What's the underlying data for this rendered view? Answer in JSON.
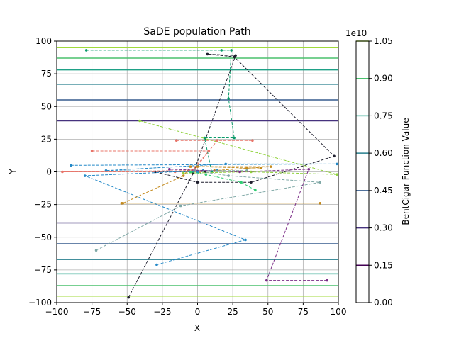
{
  "chart_data": {
    "type": "line",
    "title": "SaDE population Path",
    "xlabel": "X",
    "ylabel": "Y",
    "xlim": [
      -100,
      100
    ],
    "ylim": [
      -100,
      100
    ],
    "grid": true,
    "x_ticks": [
      "−100",
      "−75",
      "−50",
      "−25",
      "0",
      "25",
      "50",
      "75",
      "100"
    ],
    "x_tick_values": [
      -100,
      -75,
      -50,
      -25,
      0,
      25,
      50,
      75,
      100
    ],
    "y_ticks": [
      "−100",
      "−75",
      "−50",
      "−25",
      "0",
      "25",
      "50",
      "75",
      "100"
    ],
    "y_tick_values": [
      -100,
      -75,
      -50,
      -25,
      0,
      25,
      50,
      75,
      100
    ],
    "contour_levels": [
      {
        "y": 95,
        "color": "#a0da39"
      },
      {
        "y": 87,
        "color": "#4ac16d"
      },
      {
        "y": 78,
        "color": "#1fa187"
      },
      {
        "y": 67,
        "color": "#277f8e"
      },
      {
        "y": 55,
        "color": "#365c8d"
      },
      {
        "y": 39,
        "color": "#46327e"
      },
      {
        "y": -39,
        "color": "#46327e"
      },
      {
        "y": -55,
        "color": "#365c8d"
      },
      {
        "y": -67,
        "color": "#277f8e"
      },
      {
        "y": -78,
        "color": "#1fa187"
      },
      {
        "y": -87,
        "color": "#4ac16d"
      },
      {
        "y": -95,
        "color": "#a0da39"
      }
    ],
    "colorbar": {
      "label": "BentCigar Function Value",
      "multiplier": "1e10",
      "ticks": [
        "0.00",
        "0.15",
        "0.30",
        "0.45",
        "0.60",
        "0.75",
        "0.90",
        "1.05"
      ],
      "tick_values": [
        0.0,
        0.15,
        0.3,
        0.45,
        0.6,
        0.75,
        0.9,
        1.05
      ],
      "levels": [
        {
          "from": 0.0,
          "to": 0.15,
          "color": "#440154"
        },
        {
          "from": 0.15,
          "to": 0.3,
          "color": "#46327e"
        },
        {
          "from": 0.3,
          "to": 0.45,
          "color": "#365c8d"
        },
        {
          "from": 0.45,
          "to": 0.6,
          "color": "#277f8e"
        },
        {
          "from": 0.6,
          "to": 0.75,
          "color": "#1fa187"
        },
        {
          "from": 0.75,
          "to": 0.9,
          "color": "#4ac16d"
        },
        {
          "from": 0.9,
          "to": 1.05,
          "color": "#a0da39"
        }
      ]
    },
    "series": [
      {
        "color": "#1f1f2e",
        "points": [
          [
            -49,
            -96
          ],
          [
            -3,
            -1
          ],
          [
            27,
            89
          ],
          [
            7,
            90
          ],
          [
            26,
            88
          ],
          [
            97,
            12
          ],
          [
            38,
            -8
          ],
          [
            0,
            -8
          ],
          [
            -30,
            0
          ],
          [
            5,
            0
          ]
        ]
      },
      {
        "color": "#0a9b6a",
        "points": [
          [
            -79,
            93
          ],
          [
            17,
            93
          ],
          [
            24,
            93
          ],
          [
            22,
            56
          ],
          [
            26,
            26
          ],
          [
            5,
            26
          ],
          [
            10,
            0
          ]
        ]
      },
      {
        "color": "#e8756a",
        "points": [
          [
            -75,
            16
          ],
          [
            8,
            16
          ],
          [
            -4,
            1
          ],
          [
            -96,
            0
          ],
          [
            -16,
            0
          ],
          [
            2,
            0
          ]
        ]
      },
      {
        "color": "#e8756a",
        "points": [
          [
            -15,
            24
          ],
          [
            39,
            24
          ],
          [
            14,
            24
          ],
          [
            -2,
            2
          ]
        ]
      },
      {
        "color": "#8fd23a",
        "points": [
          [
            -41,
            39
          ],
          [
            99,
            -2
          ],
          [
            38,
            0
          ],
          [
            -10,
            -1
          ]
        ]
      },
      {
        "color": "#2389c8",
        "points": [
          [
            -90,
            5
          ],
          [
            99,
            6
          ],
          [
            20,
            6
          ],
          [
            -65,
            1
          ],
          [
            0,
            0
          ]
        ]
      },
      {
        "color": "#2389c8",
        "points": [
          [
            -29,
            -71
          ],
          [
            34,
            -52
          ],
          [
            -80,
            -3
          ],
          [
            4,
            1
          ],
          [
            14,
            1
          ]
        ]
      },
      {
        "color": "#c48a1c",
        "points": [
          [
            -54,
            -24
          ],
          [
            87,
            -24
          ],
          [
            -53,
            -24
          ],
          [
            -10,
            -3
          ],
          [
            -5,
            4
          ],
          [
            52,
            4
          ],
          [
            12,
            1
          ]
        ]
      },
      {
        "color": "#7fa8a6",
        "points": [
          [
            -72,
            -60
          ],
          [
            -12,
            -26
          ],
          [
            87,
            -8
          ],
          [
            22,
            -3
          ],
          [
            -2,
            1
          ],
          [
            35,
            1
          ]
        ]
      },
      {
        "color": "#7b2d87",
        "points": [
          [
            92,
            -83
          ],
          [
            49,
            -83
          ],
          [
            79,
            2
          ],
          [
            30,
            0
          ],
          [
            -20,
            2
          ]
        ]
      },
      {
        "color": "#2ecc71",
        "points": [
          [
            41,
            -14
          ],
          [
            31,
            -8
          ],
          [
            6,
            -2
          ],
          [
            -5,
            0
          ]
        ]
      },
      {
        "color": "#c48a1c",
        "points": [
          [
            0,
            4
          ],
          [
            35,
            3
          ],
          [
            45,
            3
          ]
        ]
      }
    ]
  }
}
